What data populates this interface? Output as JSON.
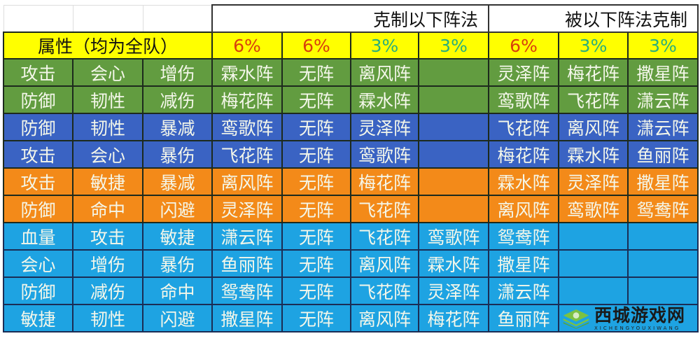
{
  "header": {
    "counter_group": "克制以下阵法",
    "countered_group": "被以下阵法克制",
    "attribute_label": "属性（均为全队）"
  },
  "percentages": [
    {
      "text": "6%",
      "color": "#d8400c"
    },
    {
      "text": "6%",
      "color": "#d8400c"
    },
    {
      "text": "3%",
      "color": "#2aae7c"
    },
    {
      "text": "3%",
      "color": "#2aae7c"
    },
    {
      "text": "6%",
      "color": "#d8400c"
    },
    {
      "text": "3%",
      "color": "#2aae7c"
    },
    {
      "text": "3%",
      "color": "#2aae7c"
    }
  ],
  "row_colors": {
    "green": "#629c40",
    "blue": "#3a63c3",
    "orange": "#f38a19",
    "sky": "#1ea3e2",
    "yellow": "#ffff00"
  },
  "rows": [
    {
      "color": "green",
      "attrs": [
        "攻击",
        "会心",
        "增伤"
      ],
      "counters": [
        "霖水阵",
        "无阵",
        "离风阵",
        ""
      ],
      "countered_by": [
        "灵泽阵",
        "梅花阵",
        "撒星阵"
      ]
    },
    {
      "color": "green",
      "attrs": [
        "防御",
        "韧性",
        "减伤"
      ],
      "counters": [
        "梅花阵",
        "无阵",
        "霖水阵",
        ""
      ],
      "countered_by": [
        "鸾歌阵",
        "飞花阵",
        "潇云阵"
      ]
    },
    {
      "color": "blue",
      "attrs": [
        "防御",
        "韧性",
        "暴减"
      ],
      "counters": [
        "鸾歌阵",
        "无阵",
        "灵泽阵",
        ""
      ],
      "countered_by": [
        "飞花阵",
        "离风阵",
        "潇云阵"
      ]
    },
    {
      "color": "blue",
      "attrs": [
        "攻击",
        "会心",
        "暴伤"
      ],
      "counters": [
        "飞花阵",
        "无阵",
        "鸾歌阵",
        ""
      ],
      "countered_by": [
        "梅花阵",
        "霖水阵",
        "鱼丽阵"
      ]
    },
    {
      "color": "orange",
      "attrs": [
        "攻击",
        "敏捷",
        "暴减"
      ],
      "counters": [
        "离风阵",
        "无阵",
        "梅花阵",
        ""
      ],
      "countered_by": [
        "霖水阵",
        "灵泽阵",
        "撒星阵"
      ]
    },
    {
      "color": "orange",
      "attrs": [
        "防御",
        "命中",
        "闪避"
      ],
      "counters": [
        "灵泽阵",
        "无阵",
        "飞花阵",
        ""
      ],
      "countered_by": [
        "离风阵",
        "鸾歌阵",
        "鸳鸯阵"
      ]
    },
    {
      "color": "sky",
      "attrs": [
        "血量",
        "攻击",
        "敏捷"
      ],
      "counters": [
        "潇云阵",
        "无阵",
        "飞花阵",
        "鸾歌阵"
      ],
      "countered_by": [
        "鸳鸯阵",
        "",
        ""
      ]
    },
    {
      "color": "sky",
      "attrs": [
        "会心",
        "增伤",
        "暴伤"
      ],
      "counters": [
        "鱼丽阵",
        "无阵",
        "离风阵",
        "霖水阵"
      ],
      "countered_by": [
        "撒星阵",
        "",
        ""
      ]
    },
    {
      "color": "sky",
      "attrs": [
        "防御",
        "减伤",
        "命中"
      ],
      "counters": [
        "鸳鸯阵",
        "无阵",
        "飞花阵",
        "灵泽阵"
      ],
      "countered_by": [
        "潇云阵",
        "",
        ""
      ]
    },
    {
      "color": "sky",
      "attrs": [
        "敏捷",
        "韧性",
        "闪避"
      ],
      "counters": [
        "撒星阵",
        "无阵",
        "离风阵",
        "梅花阵"
      ],
      "countered_by": [
        "鱼丽阵",
        "",
        ""
      ]
    }
  ],
  "watermark": {
    "name": "西城游戏网",
    "pinyin": "XICHENGYOUXIWANG"
  }
}
